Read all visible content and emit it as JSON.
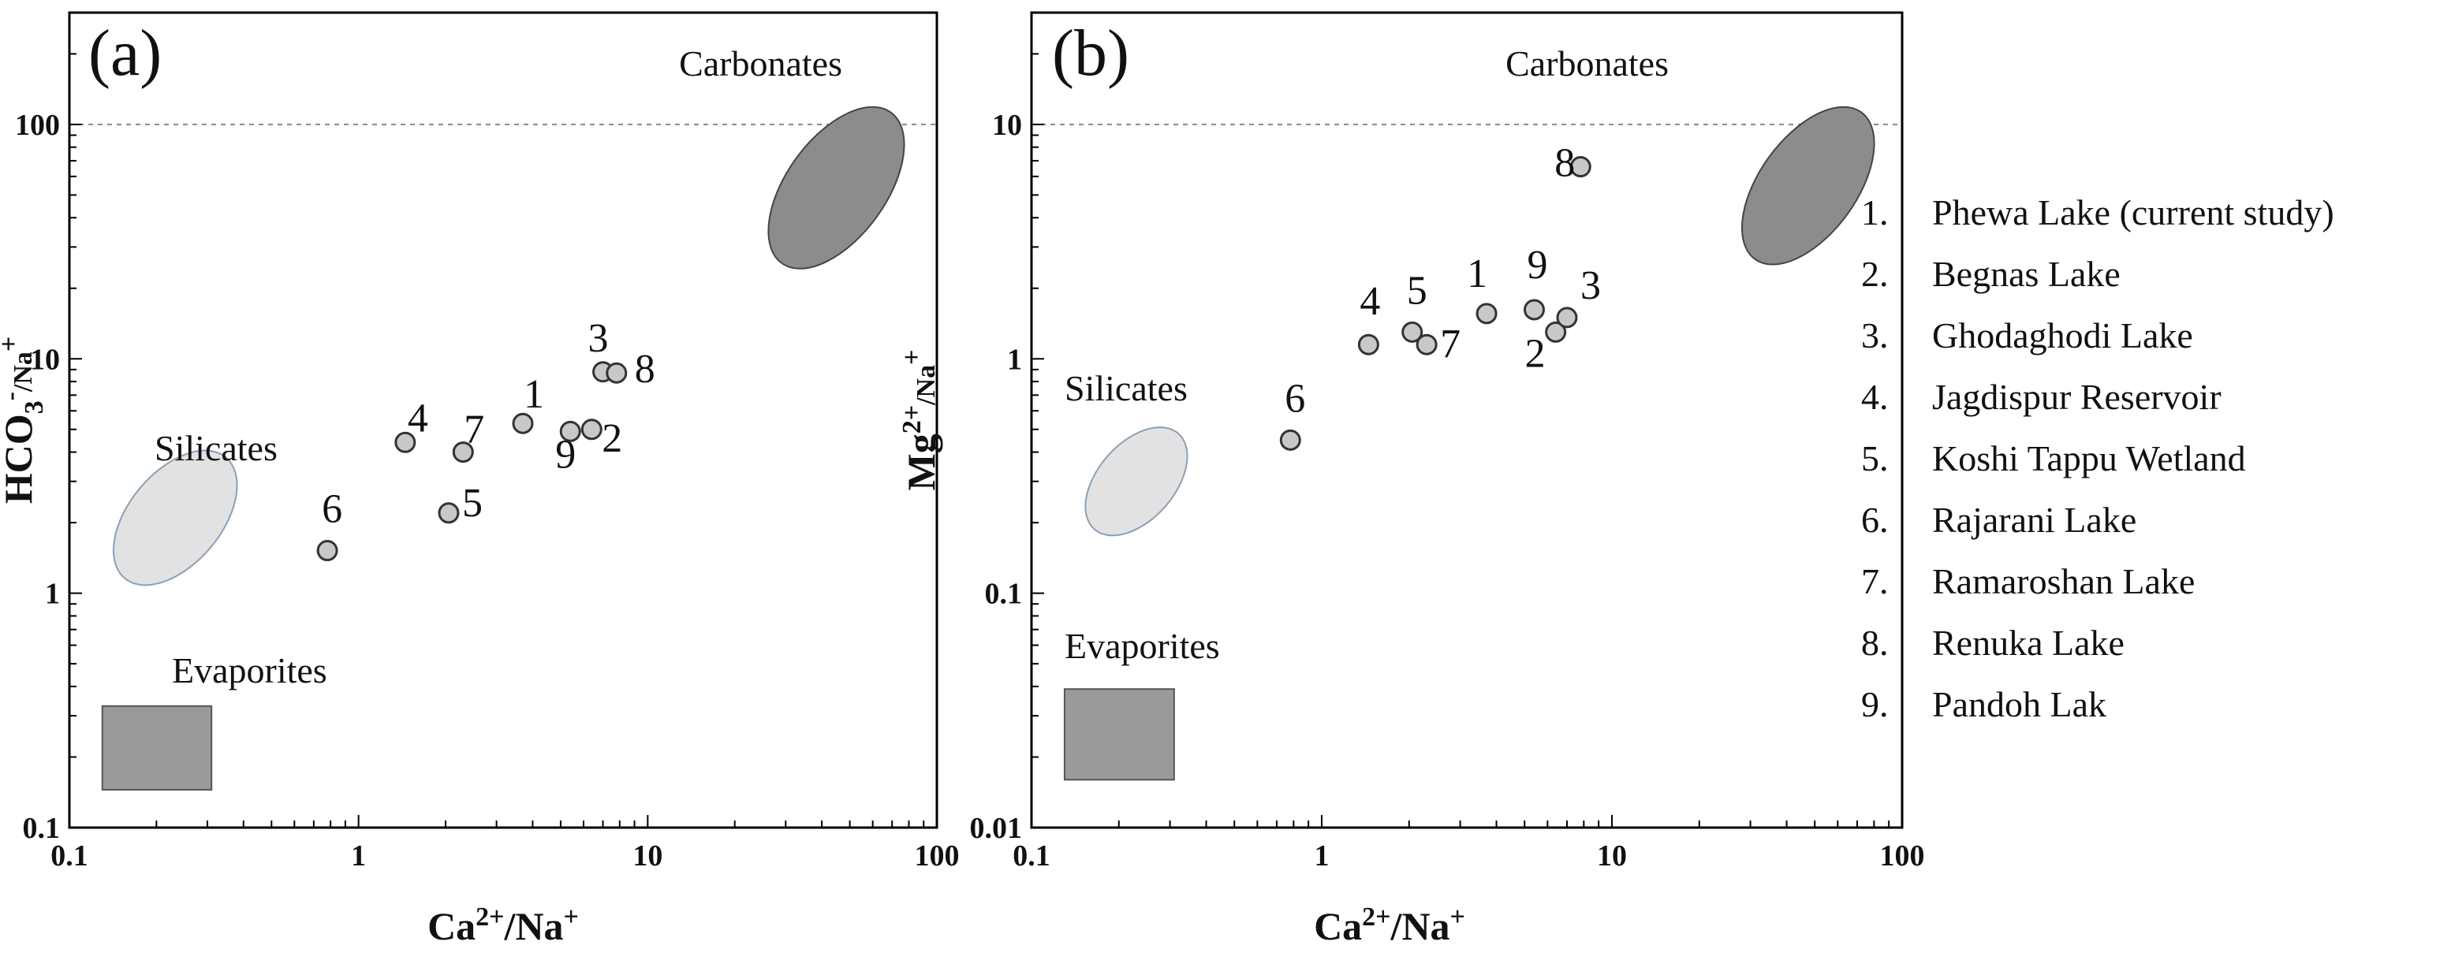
{
  "chart_data": [
    {
      "type": "scatter",
      "panel_label": "(a)",
      "xlabel": "Ca2+/Na+",
      "ylabel": "HCO3-/Na+",
      "x_scale": "log",
      "y_scale": "log",
      "xlim": [
        0.1,
        100
      ],
      "ylim": [
        0.1,
        300
      ],
      "x_ticks": [
        "0.1",
        "1",
        "10",
        "100"
      ],
      "y_ticks": [
        "0.1",
        "1",
        "10",
        "100"
      ],
      "reference_line_y": 100,
      "regions": [
        {
          "label": "Carbonates",
          "shape": "ellipse",
          "fill": "#8c8c8c",
          "x": [
            28,
            72
          ],
          "y": [
            24,
            120
          ]
        },
        {
          "label": "Silicates",
          "shape": "ellipse",
          "fill": "#e2e2e2",
          "x": [
            0.15,
            0.36
          ],
          "y": [
            1.1,
            4.0
          ]
        },
        {
          "label": "Evaporites",
          "shape": "rect",
          "fill": "#9a9a9a",
          "x": [
            0.13,
            0.31
          ],
          "y": [
            0.145,
            0.33
          ]
        }
      ],
      "points": [
        {
          "id": "1",
          "x": 3.7,
          "y": 5.3
        },
        {
          "id": "2",
          "x": 6.4,
          "y": 5.0
        },
        {
          "id": "3",
          "x": 7.0,
          "y": 8.8
        },
        {
          "id": "4",
          "x": 1.45,
          "y": 4.4
        },
        {
          "id": "5",
          "x": 2.05,
          "y": 2.2
        },
        {
          "id": "6",
          "x": 0.78,
          "y": 1.52
        },
        {
          "id": "7",
          "x": 2.3,
          "y": 4.0
        },
        {
          "id": "8",
          "x": 7.8,
          "y": 8.7
        },
        {
          "id": "9",
          "x": 5.4,
          "y": 4.9
        }
      ]
    },
    {
      "type": "scatter",
      "panel_label": "(b)",
      "xlabel": "Ca2+/Na+",
      "ylabel": "Mg2+/Na+",
      "x_scale": "log",
      "y_scale": "log",
      "xlim": [
        0.1,
        100
      ],
      "ylim": [
        0.01,
        30
      ],
      "x_ticks": [
        "0.1",
        "1",
        "10",
        "100"
      ],
      "y_ticks": [
        "0.01",
        "0.1",
        "1",
        "10"
      ],
      "reference_line_y": 10,
      "regions": [
        {
          "label": "Carbonates",
          "shape": "ellipse",
          "fill": "#8c8c8c",
          "x": [
            30,
            75
          ],
          "y": [
            2.5,
            12
          ]
        },
        {
          "label": "Silicates",
          "shape": "ellipse",
          "fill": "#e2e2e2",
          "x": [
            0.16,
            0.33
          ],
          "y": [
            0.18,
            0.5
          ]
        },
        {
          "label": "Evaporites",
          "shape": "rect",
          "fill": "#9a9a9a",
          "x": [
            0.13,
            0.31
          ],
          "y": [
            0.016,
            0.039
          ]
        }
      ],
      "points": [
        {
          "id": "1",
          "x": 3.7,
          "y": 1.56
        },
        {
          "id": "2",
          "x": 6.4,
          "y": 1.3
        },
        {
          "id": "3",
          "x": 7.0,
          "y": 1.5
        },
        {
          "id": "4",
          "x": 1.45,
          "y": 1.15
        },
        {
          "id": "5",
          "x": 2.05,
          "y": 1.3
        },
        {
          "id": "6",
          "x": 0.78,
          "y": 0.45
        },
        {
          "id": "7",
          "x": 2.3,
          "y": 1.15
        },
        {
          "id": "8",
          "x": 7.8,
          "y": 6.6
        },
        {
          "id": "9",
          "x": 5.4,
          "y": 1.62
        }
      ]
    }
  ],
  "legend": [
    {
      "num": "1.",
      "label": "Phewa Lake (current study)"
    },
    {
      "num": "2.",
      "label": "Begnas Lake"
    },
    {
      "num": "3.",
      "label": "Ghodaghodi Lake"
    },
    {
      "num": "4.",
      "label": "Jagdispur Reservoir"
    },
    {
      "num": "5.",
      "label": "Koshi Tappu Wetland"
    },
    {
      "num": "6.",
      "label": "Rajarani Lake"
    },
    {
      "num": "7.",
      "label": "Ramaroshan Lake"
    },
    {
      "num": "8.",
      "label": "Renuka Lake"
    },
    {
      "num": "9.",
      "label": "Pandoh Lak"
    }
  ],
  "colors": {
    "point_fill": "#c8c8c8",
    "point_stroke": "#333333",
    "axis": "#000000",
    "refline": "#888888"
  }
}
